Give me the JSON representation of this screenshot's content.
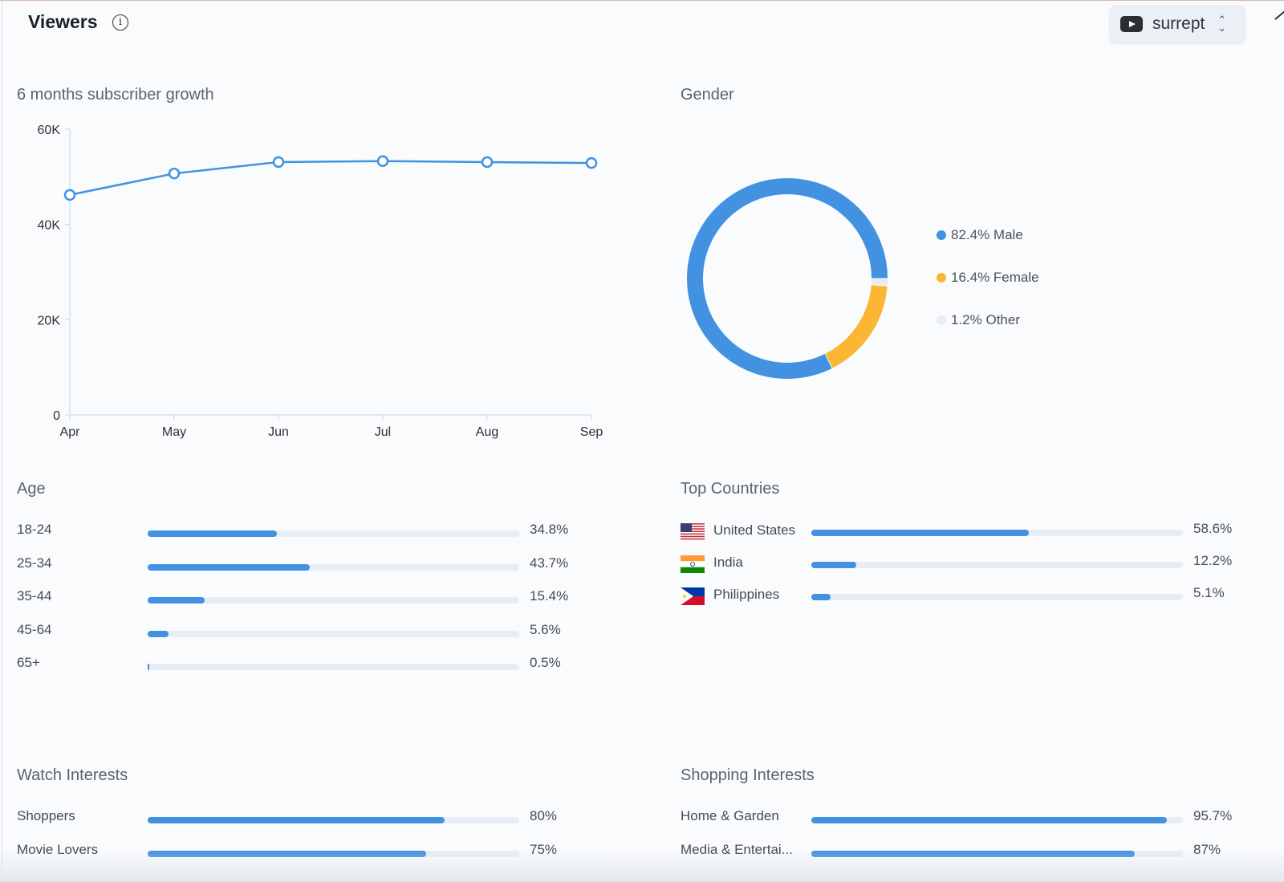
{
  "header": {
    "title": "Viewers",
    "info_icon": "info-icon",
    "channel": {
      "icon": "youtube-icon",
      "name": "surrept",
      "toggle_icon": "chevron-up-down-icon"
    }
  },
  "colors": {
    "accent": "#4391e1",
    "female": "#fbb634",
    "other": "#e8ecf4",
    "track": "#e8ecf4"
  },
  "growth": {
    "title": "6 months subscriber growth"
  },
  "chart_data": [
    {
      "type": "line",
      "title": "6 months subscriber growth",
      "xlabel": "",
      "ylabel": "",
      "categories": [
        "Apr",
        "May",
        "Jun",
        "Jul",
        "Aug",
        "Sep"
      ],
      "series": [
        {
          "name": "Subscribers",
          "values": [
            46200,
            50700,
            53100,
            53300,
            53100,
            52900
          ]
        }
      ],
      "ylim": [
        0,
        60000
      ],
      "yticks": [
        0,
        20000,
        40000,
        60000
      ],
      "ytick_labels": [
        "0",
        "20K",
        "40K",
        "60K"
      ],
      "grid": false
    },
    {
      "type": "pie",
      "title": "Gender",
      "donut": true,
      "slices": [
        {
          "name": "Male",
          "value": 82.4,
          "color": "#4391e1"
        },
        {
          "name": "Female",
          "value": 16.4,
          "color": "#fbb634"
        },
        {
          "name": "Other",
          "value": 1.2,
          "color": "#e8ecf4"
        }
      ],
      "legend_position": "right"
    }
  ],
  "gender": {
    "title": "Gender",
    "legend": [
      {
        "label": "82.4% Male"
      },
      {
        "label": "16.4% Female"
      },
      {
        "label": "1.2% Other"
      }
    ]
  },
  "age": {
    "title": "Age",
    "rows": [
      {
        "label": "18-24",
        "value": 34.8,
        "display": "34.8%"
      },
      {
        "label": "25-34",
        "value": 43.7,
        "display": "43.7%"
      },
      {
        "label": "35-44",
        "value": 15.4,
        "display": "15.4%"
      },
      {
        "label": "45-64",
        "value": 5.6,
        "display": "5.6%"
      },
      {
        "label": "65+",
        "value": 0.5,
        "display": "0.5%"
      }
    ]
  },
  "countries": {
    "title": "Top Countries",
    "rows": [
      {
        "flag": "us-flag-icon",
        "label": "United States",
        "value": 58.6,
        "display": "58.6%"
      },
      {
        "flag": "india-flag-icon",
        "label": "India",
        "value": 12.2,
        "display": "12.2%"
      },
      {
        "flag": "philippines-flag-icon",
        "label": "Philippines",
        "value": 5.1,
        "display": "5.1%"
      }
    ]
  },
  "watch": {
    "title": "Watch Interests",
    "rows": [
      {
        "label": "Shoppers",
        "value": 80,
        "display": "80%"
      },
      {
        "label": "Movie Lovers",
        "value": 75,
        "display": "75%"
      }
    ]
  },
  "shopping": {
    "title": "Shopping Interests",
    "rows": [
      {
        "label": "Home & Garden",
        "value": 95.7,
        "display": "95.7%"
      },
      {
        "label": "Media & Entertai...",
        "value": 87,
        "display": "87%"
      }
    ]
  }
}
